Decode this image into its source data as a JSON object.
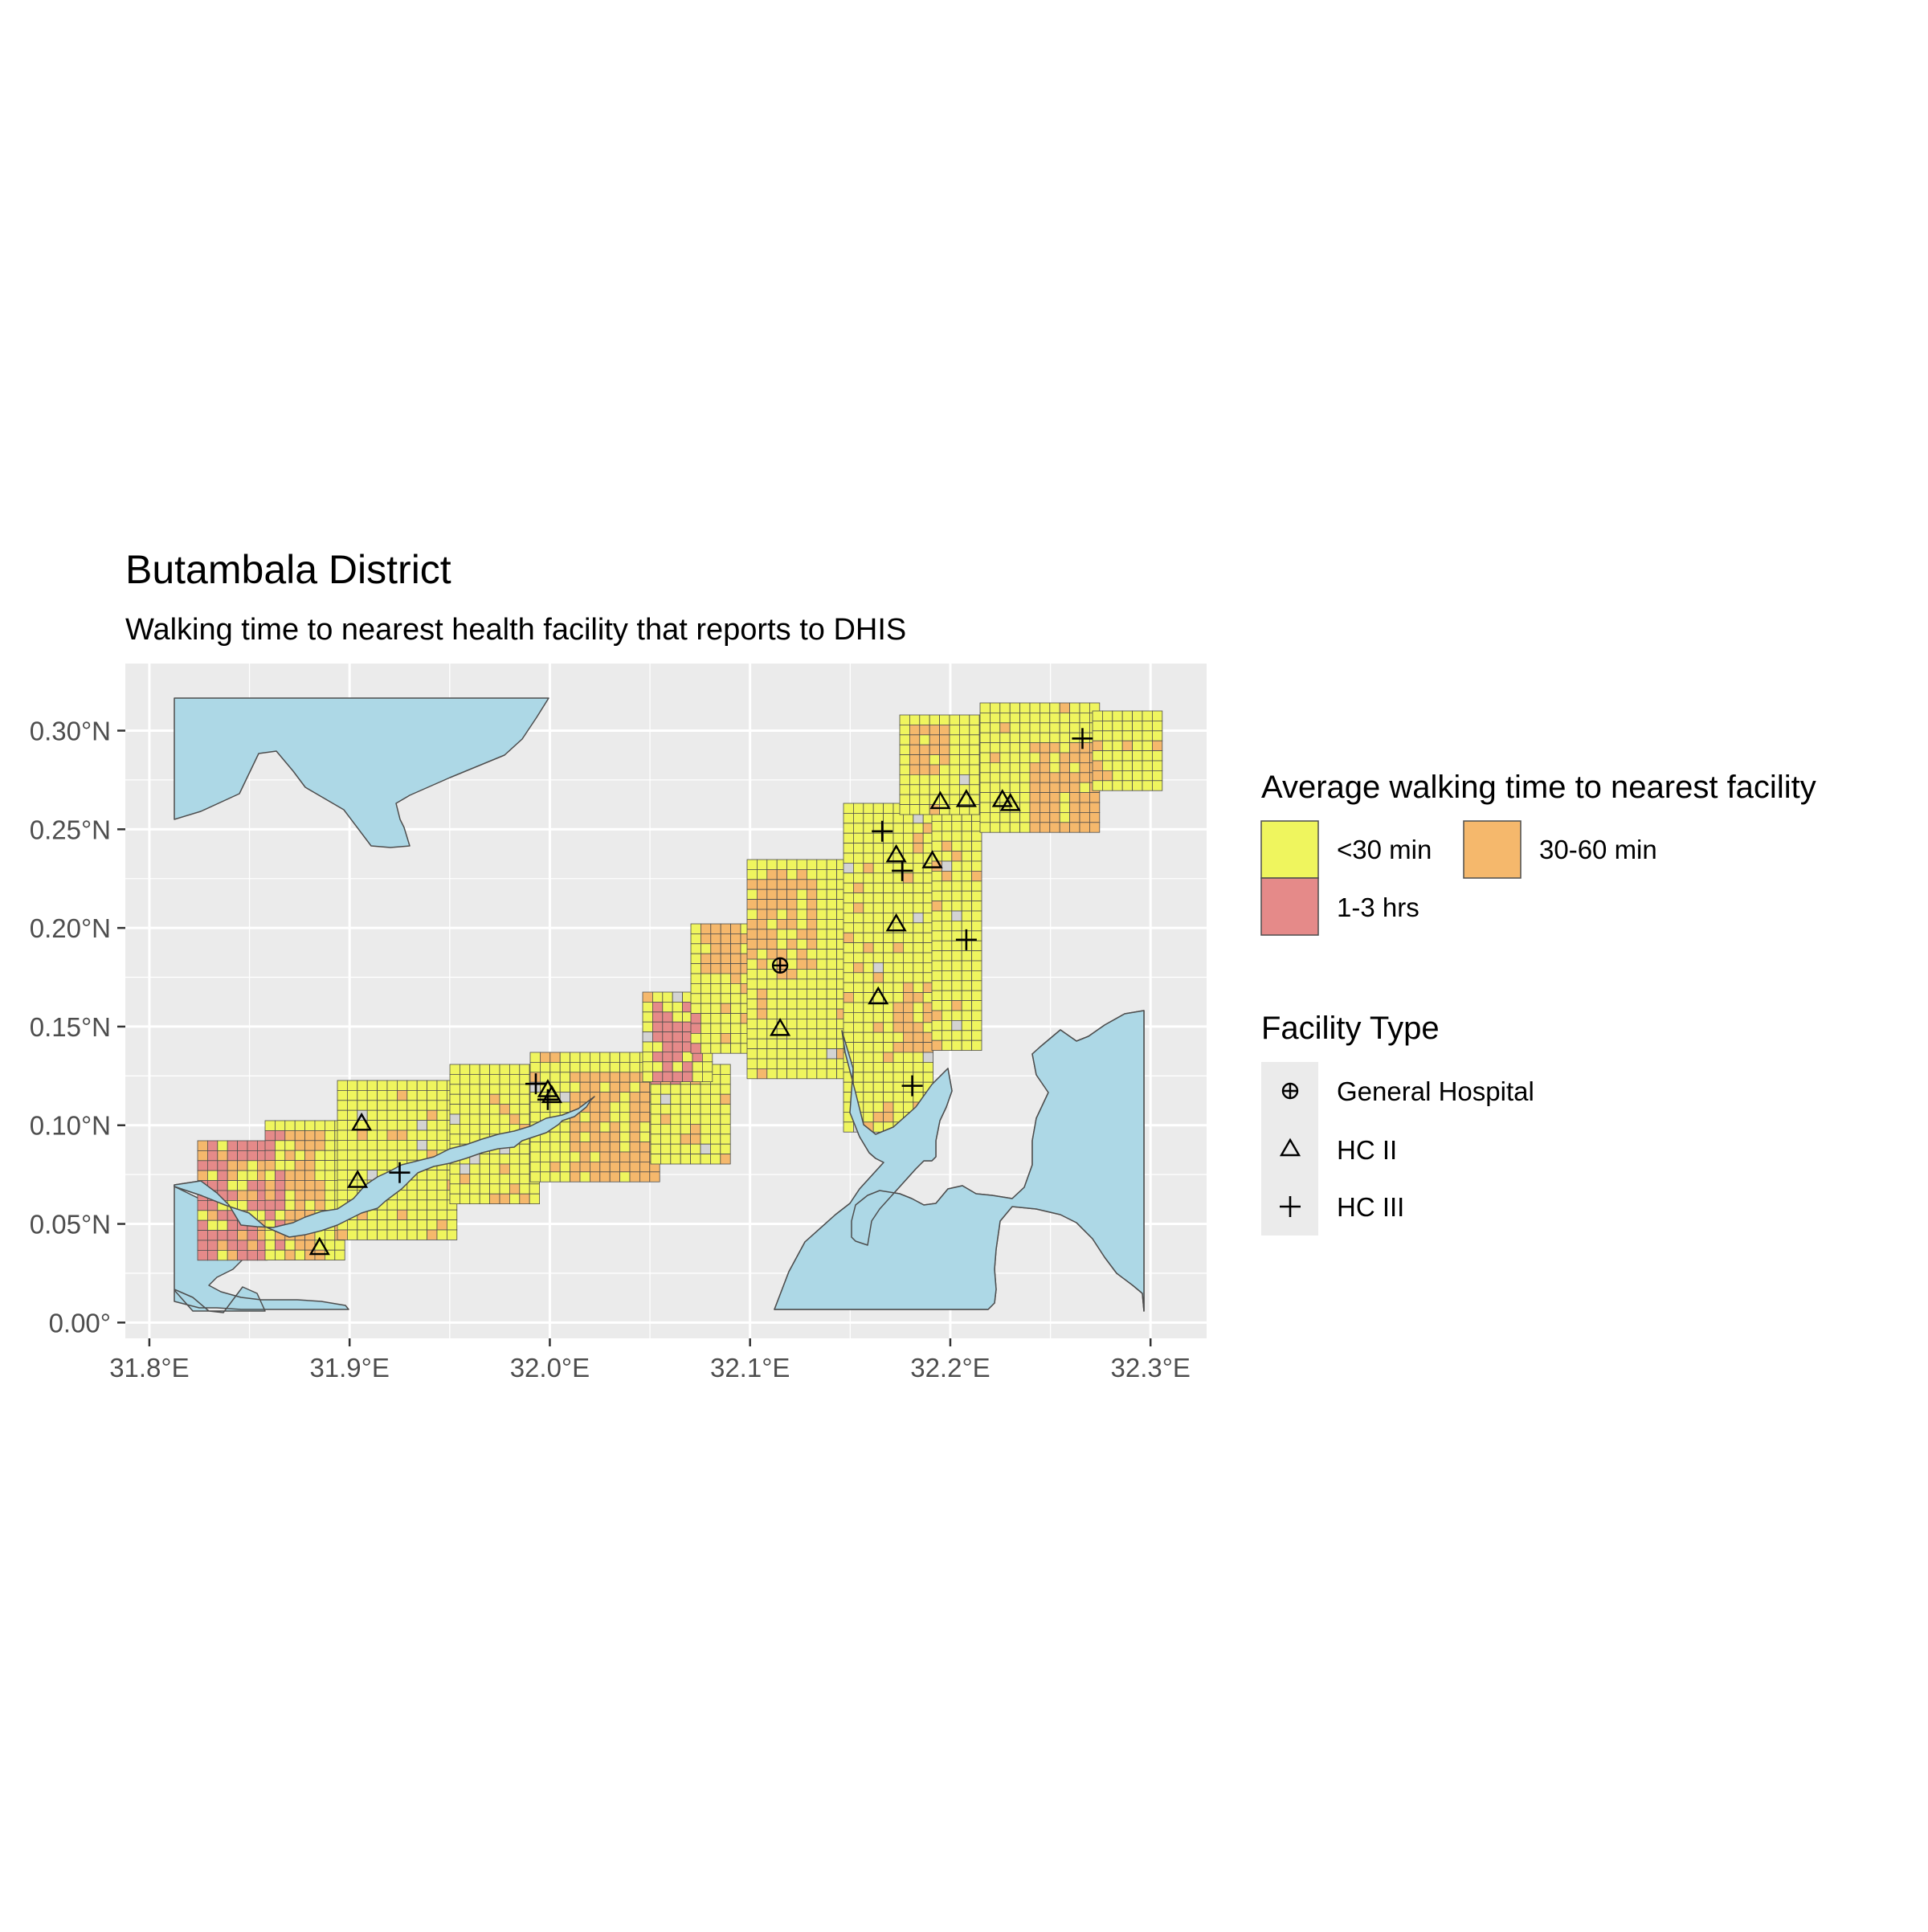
{
  "title": "Butambala District",
  "subtitle": "Walking time to nearest health facility that reports to DHIS",
  "colors": {
    "panel": "#ebebeb",
    "grid": "#ffffff",
    "water": "#add8e6",
    "district": "#d3d3d3",
    "outline": "#4d4d4d",
    "lt30": "#eff55e",
    "m30_60": "#f5b86c",
    "h1_3": "#e58a89"
  },
  "legend_time": {
    "title": "Average walking time to nearest facility",
    "items": [
      {
        "label": "<30 min",
        "key": "lt30"
      },
      {
        "label": "30-60 min",
        "key": "m30_60"
      },
      {
        "label": "1-3 hrs",
        "key": "h1_3"
      }
    ]
  },
  "legend_facility": {
    "title": "Facility Type",
    "items": [
      {
        "label": "General Hospital",
        "shape": "circle-plus"
      },
      {
        "label": "HC II",
        "shape": "triangle"
      },
      {
        "label": "HC III",
        "shape": "plus"
      }
    ]
  },
  "chart_data": {
    "type": "map",
    "x_ticks": [
      "31.8°E",
      "31.9°E",
      "32.0°E",
      "32.1°E",
      "32.2°E",
      "32.3°E"
    ],
    "x_tick_values": [
      31.8,
      31.9,
      32.0,
      32.1,
      32.2,
      32.3
    ],
    "y_ticks": [
      "0.00°",
      "0.05°N",
      "0.10°N",
      "0.15°N",
      "0.20°N",
      "0.25°N",
      "0.30°N"
    ],
    "y_tick_values": [
      0.0,
      0.05,
      0.1,
      0.15,
      0.2,
      0.25,
      0.3
    ],
    "xlim": [
      31.788,
      32.328
    ],
    "ylim": [
      -0.008,
      0.334
    ],
    "grid_cell_size": 0.0083,
    "facilities": [
      {
        "type": "General Hospital",
        "lon": 32.115,
        "lat": 0.181
      },
      {
        "type": "HC II",
        "lon": 31.885,
        "lat": 0.038
      },
      {
        "type": "HC II",
        "lon": 31.904,
        "lat": 0.072
      },
      {
        "type": "HC II",
        "lon": 31.906,
        "lat": 0.101
      },
      {
        "type": "HC II",
        "lon": 31.999,
        "lat": 0.118
      },
      {
        "type": "HC II",
        "lon": 32.001,
        "lat": 0.115
      },
      {
        "type": "HC II",
        "lon": 32.115,
        "lat": 0.149
      },
      {
        "type": "HC II",
        "lon": 32.164,
        "lat": 0.165
      },
      {
        "type": "HC II",
        "lon": 32.173,
        "lat": 0.202
      },
      {
        "type": "HC II",
        "lon": 32.173,
        "lat": 0.237
      },
      {
        "type": "HC II",
        "lon": 32.191,
        "lat": 0.234
      },
      {
        "type": "HC II",
        "lon": 32.195,
        "lat": 0.264
      },
      {
        "type": "HC II",
        "lon": 32.208,
        "lat": 0.265
      },
      {
        "type": "HC II",
        "lon": 32.226,
        "lat": 0.265
      },
      {
        "type": "HC II",
        "lon": 32.23,
        "lat": 0.263
      },
      {
        "type": "HC III",
        "lon": 31.925,
        "lat": 0.076
      },
      {
        "type": "HC III",
        "lon": 31.993,
        "lat": 0.121
      },
      {
        "type": "HC III",
        "lon": 31.999,
        "lat": 0.113
      },
      {
        "type": "HC III",
        "lon": 32.166,
        "lat": 0.249
      },
      {
        "type": "HC III",
        "lon": 32.176,
        "lat": 0.229
      },
      {
        "type": "HC III",
        "lon": 32.208,
        "lat": 0.194
      },
      {
        "type": "HC III",
        "lon": 32.181,
        "lat": 0.12
      },
      {
        "type": "HC III",
        "lon": 32.266,
        "lat": 0.296
      }
    ]
  }
}
